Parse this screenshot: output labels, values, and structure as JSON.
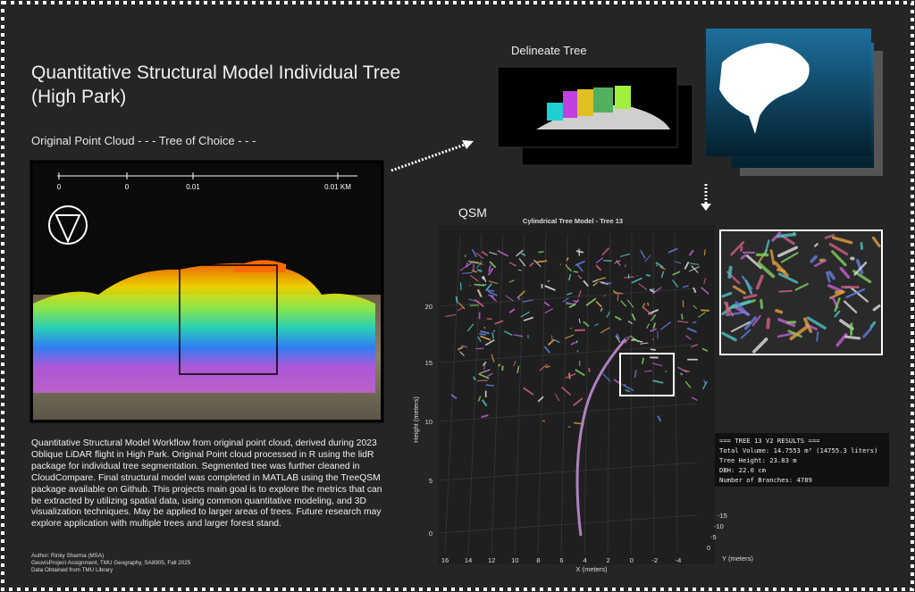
{
  "header": {
    "title_line1": "Quantitative Structural Model Individual Tree",
    "title_line2": "(High Park)",
    "subtitle": "Original Point Cloud - - - Tree of Choice - - -"
  },
  "map": {
    "scale_labels": [
      "0",
      "0",
      "0.01",
      "0.01 KM"
    ]
  },
  "delineate": {
    "label": "Delineate Tree"
  },
  "qsm": {
    "label": "QSM",
    "plot_title": "Cylindrical Tree Model - Tree 13",
    "z_label": "Height (meters)",
    "z_ticks": [
      "0",
      "5",
      "10",
      "15",
      "20"
    ],
    "x_label": "X (meters)",
    "x_ticks": [
      "16",
      "14",
      "12",
      "10",
      "8",
      "6",
      "4",
      "2",
      "0",
      "-2",
      "-4"
    ],
    "y_label": "Y (meters)",
    "y_ticks": [
      "-15",
      "-10",
      "-5",
      "0"
    ]
  },
  "results": {
    "lines": [
      "=== TREE 13 V2 RESULTS ===",
      "Total Volume: 14.7553 m³ (14755.3 liters)",
      "Tree Height: 23.83 m",
      "DBH: 22.0 cm",
      "Number of Branches: 4789"
    ]
  },
  "description": "Quantitative Structural Model Workflow from original point cloud, derived during 2023 Oblique LiDAR flight in High Park. Original Point cloud processed in R using the lidR package for individual tree segmentation. Segmented tree was further cleaned in CloudCompare. Final structural model was completed in MATLAB using the TreeQSM package available on Github. This projects main goal is to explore the metrics that can be extracted by utilizing spatial data, using common quantitative modeling, and 3D visualization techniques. May be applied to larger areas of trees. Future research may explore application with multiple trees and larger forest stand.",
  "credits": [
    "Author: Rinky Sharma (MSA)",
    "GeovisProject Assignment, TMU Geography, SA8905, Fall 2025",
    "Data Obtained from TMU Library"
  ]
}
